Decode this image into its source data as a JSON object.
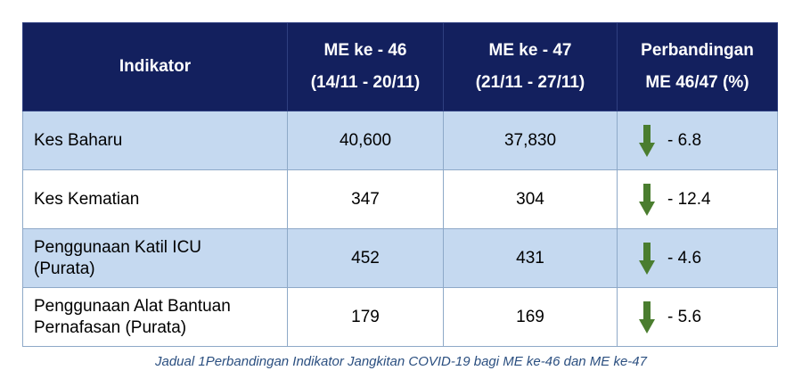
{
  "table": {
    "headers": {
      "indicator": "Indikator",
      "col1": [
        "ME ke - 46",
        "(14/11 - 20/11)"
      ],
      "col2": [
        "ME ke - 47",
        "(21/11 - 27/11)"
      ],
      "col3": [
        "Perbandingan",
        "ME 46/47 (%)"
      ]
    },
    "rows": [
      {
        "indicator": [
          "Kes Baharu"
        ],
        "me46": "40,600",
        "me47": "37,830",
        "trend_icon": "arrow-down-icon",
        "change": "- 6.8"
      },
      {
        "indicator": [
          "Kes Kematian"
        ],
        "me46": "347",
        "me47": "304",
        "trend_icon": "arrow-down-icon",
        "change": "- 12.4"
      },
      {
        "indicator": [
          "Penggunaan Katil ICU",
          "(Purata)"
        ],
        "me46": "452",
        "me47": "431",
        "trend_icon": "arrow-down-icon",
        "change": "- 4.6"
      },
      {
        "indicator": [
          "Penggunaan Alat Bantuan",
          "Pernafasan (Purata)"
        ],
        "me46": "179",
        "me47": "169",
        "trend_icon": "arrow-down-icon",
        "change": "- 5.6"
      }
    ]
  },
  "caption": "Jadual 1Perbandingan Indikator Jangkitan COVID-19 bagi ME ke-46 dan ME ke-47",
  "colors": {
    "header_bg": "#13205e",
    "row_shade": "#c5d9f0",
    "arrow": "#4a7d2f",
    "caption": "#2b4f80"
  }
}
